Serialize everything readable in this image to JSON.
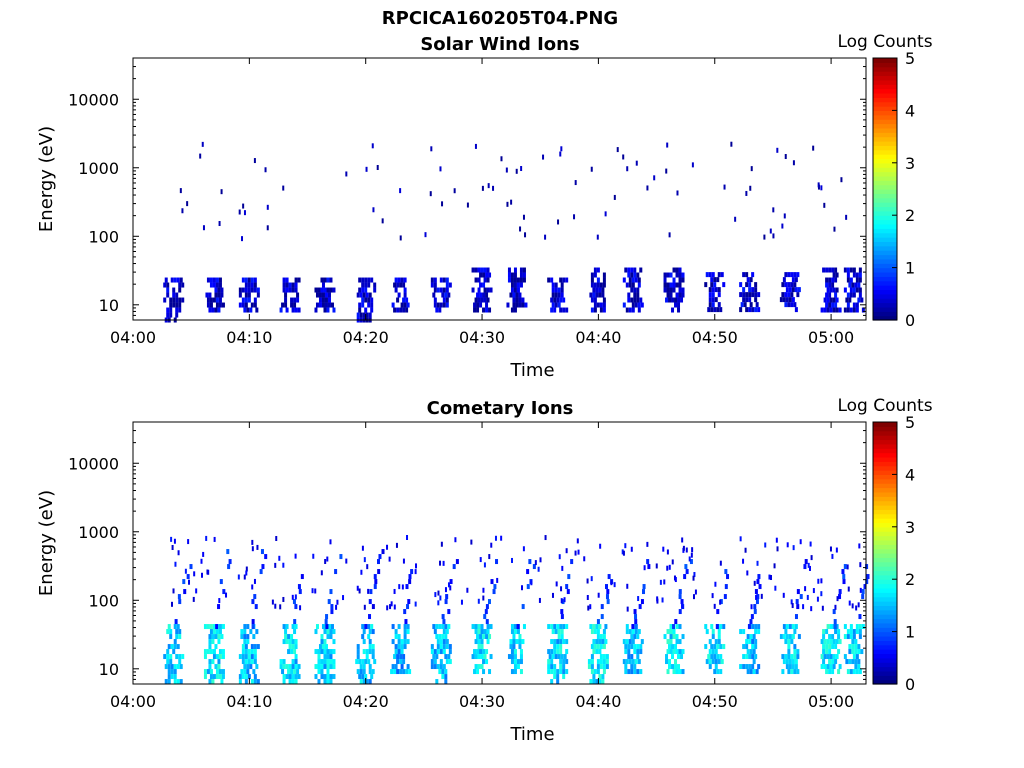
{
  "figure": {
    "title": "RPCICA160205T04.PNG"
  },
  "colormap": {
    "name": "jet",
    "stops": [
      "#00007f",
      "#0000ff",
      "#00ffff",
      "#ffff00",
      "#ff0000",
      "#7f0000"
    ]
  },
  "chart_data": [
    {
      "type": "heatmap",
      "title": "Solar Wind Ions",
      "xlabel": "Time",
      "ylabel": "Energy (eV)",
      "xlim": [
        "04:00",
        "05:03"
      ],
      "ylim": [
        6,
        40000
      ],
      "yscale": "log",
      "xticks": [
        "04:00",
        "04:10",
        "04:20",
        "04:30",
        "04:40",
        "04:50",
        "05:00"
      ],
      "yticks": [
        "10",
        "100",
        "1000",
        "10000"
      ],
      "colorbar": {
        "label": "Log Counts",
        "range": [
          0,
          5
        ],
        "ticks": [
          "0",
          "1",
          "2",
          "3",
          "4",
          "5"
        ]
      },
      "bursts": [
        {
          "t": "04:03.5",
          "emin": 6,
          "emax": 25,
          "level": 0.3
        },
        {
          "t": "04:07",
          "emin": 9,
          "emax": 25,
          "level": 0.3
        },
        {
          "t": "04:10",
          "emin": 8,
          "emax": 25,
          "level": 0.3
        },
        {
          "t": "04:13.5",
          "emin": 9,
          "emax": 25,
          "level": 0.3
        },
        {
          "t": "04:16.5",
          "emin": 9,
          "emax": 25,
          "level": 0.3
        },
        {
          "t": "04:20",
          "emin": 6,
          "emax": 25,
          "level": 0.3
        },
        {
          "t": "04:23",
          "emin": 9,
          "emax": 25,
          "level": 0.3
        },
        {
          "t": "04:26.5",
          "emin": 9,
          "emax": 25,
          "level": 0.3
        },
        {
          "t": "04:30",
          "emin": 9,
          "emax": 35,
          "level": 0.3
        },
        {
          "t": "04:33",
          "emin": 9,
          "emax": 35,
          "level": 0.3
        },
        {
          "t": "04:36.5",
          "emin": 9,
          "emax": 25,
          "level": 0.3
        },
        {
          "t": "04:40",
          "emin": 9,
          "emax": 35,
          "level": 0.3
        },
        {
          "t": "04:43",
          "emin": 9,
          "emax": 35,
          "level": 0.3
        },
        {
          "t": "04:46.5",
          "emin": 9,
          "emax": 35,
          "level": 0.3
        },
        {
          "t": "04:50",
          "emin": 9,
          "emax": 30,
          "level": 0.3
        },
        {
          "t": "04:53",
          "emin": 9,
          "emax": 30,
          "level": 0.3
        },
        {
          "t": "04:56.5",
          "emin": 9,
          "emax": 30,
          "level": 0.3
        },
        {
          "t": "05:00",
          "emin": 9,
          "emax": 35,
          "level": 0.3
        },
        {
          "t": "05:02",
          "emin": 9,
          "emax": 35,
          "level": 0.3
        }
      ],
      "sparse": {
        "emin": 100,
        "emax": 2500,
        "level": 0.2,
        "density": "low"
      }
    },
    {
      "type": "heatmap",
      "title": "Cometary Ions",
      "xlabel": "Time",
      "ylabel": "Energy (eV)",
      "xlim": [
        "04:00",
        "05:03"
      ],
      "ylim": [
        6,
        40000
      ],
      "yscale": "log",
      "xticks": [
        "04:00",
        "04:10",
        "04:20",
        "04:30",
        "04:40",
        "04:50",
        "05:00"
      ],
      "yticks": [
        "10",
        "100",
        "1000",
        "10000"
      ],
      "colorbar": {
        "label": "Log Counts",
        "range": [
          0,
          5
        ],
        "ticks": [
          "0",
          "1",
          "2",
          "3",
          "4",
          "5"
        ]
      },
      "bursts": [
        {
          "t": "04:03.5",
          "emin": 6,
          "emax": 400,
          "level": 1.6
        },
        {
          "t": "04:07",
          "emin": 6,
          "emax": 600,
          "level": 1.7
        },
        {
          "t": "04:10",
          "emin": 6,
          "emax": 600,
          "level": 1.5
        },
        {
          "t": "04:13.5",
          "emin": 6,
          "emax": 500,
          "level": 1.6
        },
        {
          "t": "04:16.5",
          "emin": 6,
          "emax": 500,
          "level": 1.6
        },
        {
          "t": "04:20",
          "emin": 6,
          "emax": 600,
          "level": 1.5
        },
        {
          "t": "04:23",
          "emin": 9,
          "emax": 500,
          "level": 1.4
        },
        {
          "t": "04:26.5",
          "emin": 6,
          "emax": 400,
          "level": 1.5
        },
        {
          "t": "04:30",
          "emin": 9,
          "emax": 400,
          "level": 1.7
        },
        {
          "t": "04:33",
          "emin": 9,
          "emax": 400,
          "level": 1.6
        },
        {
          "t": "04:36.5",
          "emin": 6,
          "emax": 400,
          "level": 1.6
        },
        {
          "t": "04:40",
          "emin": 6,
          "emax": 400,
          "level": 1.7
        },
        {
          "t": "04:43",
          "emin": 9,
          "emax": 400,
          "level": 1.5
        },
        {
          "t": "04:46.5",
          "emin": 9,
          "emax": 400,
          "level": 1.7
        },
        {
          "t": "04:50",
          "emin": 9,
          "emax": 400,
          "level": 1.6
        },
        {
          "t": "04:53",
          "emin": 9,
          "emax": 400,
          "level": 1.5
        },
        {
          "t": "04:56.5",
          "emin": 9,
          "emax": 400,
          "level": 1.6
        },
        {
          "t": "05:00",
          "emin": 9,
          "emax": 400,
          "level": 1.7
        },
        {
          "t": "05:02",
          "emin": 9,
          "emax": 400,
          "level": 1.6
        }
      ],
      "sparse": {
        "emin": 80,
        "emax": 900,
        "level": 0.5,
        "density": "high"
      }
    }
  ]
}
